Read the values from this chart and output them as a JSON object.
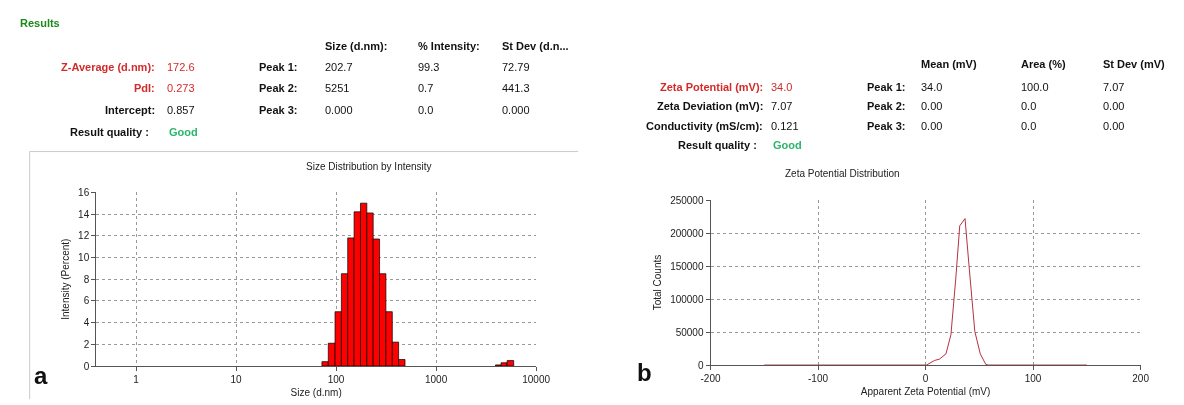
{
  "chart_data": [
    {
      "type": "histogram",
      "title": "Size Distribution by Intensity",
      "xlabel": "Size (d.nm)",
      "ylabel": "Intensity (Percent)",
      "bins": [
        72.2,
        83.6,
        97.6,
        113,
        130.8,
        151.4,
        175.4,
        203,
        235,
        272,
        315,
        365,
        422,
        489,
        3926,
        4467,
        5128,
        5970
      ],
      "values": [
        0.4,
        2.1,
        5,
        8.5,
        11.8,
        14.2,
        15,
        14.1,
        11.7,
        8.5,
        5,
        2.2,
        0.6,
        0,
        0.1,
        0.3,
        0.5
      ],
      "color": "#ff0000",
      "log": "x",
      "xlim": [
        0.4,
        10000
      ],
      "xticks": [
        1,
        10,
        100,
        1000,
        10000
      ],
      "ylim": [
        0,
        16
      ],
      "yticks": [
        0,
        2,
        4,
        6,
        8,
        10,
        12,
        14,
        16
      ],
      "grid": true,
      "annotations": [
        "Results",
        "Size (d.nm):",
        "% Intensity:",
        "St Dev (d.n...",
        "Z-Average (d.nm):",
        "172.6",
        "Peak 1:",
        "202.7",
        "99.3",
        "72.79",
        "PdI:",
        "0.273",
        "Peak 2:",
        "5251",
        "0.7",
        "441.3",
        "Intercept:",
        "0.857",
        "Peak 3:",
        "0.000",
        "0.0",
        "0.000",
        "Result quality :",
        "Good",
        "a"
      ]
    },
    {
      "type": "line",
      "title": "Zeta Potential Distribution",
      "xlabel": "Apparent Zeta Potential (mV)",
      "ylabel": "Total Counts",
      "x": [
        -150,
        0.9,
        8.5,
        13,
        19,
        23.6,
        28,
        31.8,
        36.7,
        40.3,
        45.8,
        50.9,
        56,
        58.5,
        150
      ],
      "values": [
        0,
        0,
        7000,
        9000,
        17000,
        46000,
        129000,
        211000,
        222000,
        153000,
        51000,
        17000,
        1000,
        0,
        0
      ],
      "color": "#b5323f",
      "xlim": [
        -200,
        200
      ],
      "xticks": [
        -200,
        -100,
        0,
        100,
        200
      ],
      "ylim": [
        0,
        250000
      ],
      "yticks": [
        0,
        50000,
        100000,
        150000,
        200000,
        250000
      ],
      "grid": true,
      "annotations": [
        "Mean (mV)",
        "Area (%)",
        "St Dev (mV)",
        "Zeta Potential (mV):",
        "34.0",
        "Peak 1:",
        "34.0",
        "100.0",
        "7.07",
        "Zeta Deviation (mV):",
        "7.07",
        "Peak 2:",
        "0.00",
        "0.0",
        "0.00",
        "Conductivity (mS/cm):",
        "0.121",
        "Peak 3:",
        "0.00",
        "0.0",
        "0.00",
        "Result quality :",
        "Good",
        "b"
      ]
    }
  ]
}
